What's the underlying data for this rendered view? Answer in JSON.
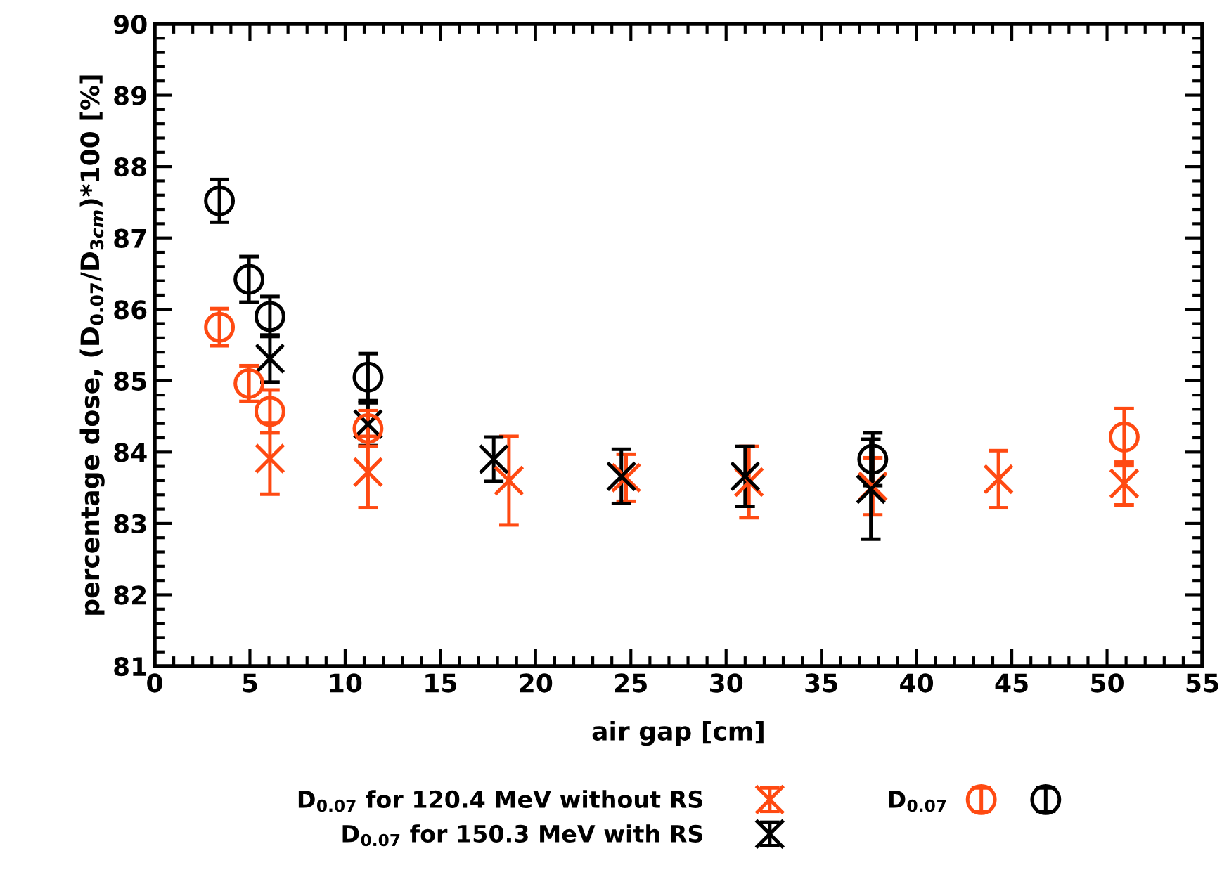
{
  "chart_data": {
    "type": "scatter",
    "xlabel": "air gap [cm]",
    "ylabel": "percentage dose, (D$_{0.07}$/D$_{3cm}$)*100 [%]",
    "xlim": [
      0,
      55
    ],
    "xticks": [
      0,
      5,
      10,
      15,
      20,
      25,
      30,
      35,
      40,
      45,
      50,
      55
    ],
    "ylim": [
      81,
      90
    ],
    "yticks": [
      81,
      82,
      83,
      84,
      85,
      86,
      87,
      88,
      89,
      90
    ],
    "grid": false,
    "legend": "bottom",
    "series": [
      {
        "name": "D$_{0.07}$ for 120.4 MeV without RS",
        "color": "#ff4a12",
        "marker": "cross",
        "x": [
          6.05,
          11.2,
          18.6,
          24.75,
          31.2,
          37.7,
          44.3,
          50.9
        ],
        "values": [
          83.91,
          83.72,
          83.6,
          83.64,
          83.58,
          83.52,
          83.62,
          83.56
        ],
        "errors": [
          0.5,
          0.5,
          0.62,
          0.33,
          0.5,
          0.4,
          0.4,
          0.3
        ]
      },
      {
        "name": "D$_{0.07}$ for 150.3 MeV with RS",
        "color": "#000000",
        "marker": "cross",
        "x": [
          6.05,
          11.2,
          17.8,
          24.5,
          31.0,
          37.6
        ],
        "values": [
          85.31,
          84.39,
          83.9,
          83.66,
          83.66,
          83.48
        ],
        "errors": [
          0.33,
          0.3,
          0.31,
          0.38,
          0.42,
          0.7
        ]
      },
      {
        "name": "D$_{0.07}$",
        "color": "#ff4a12",
        "marker": "circle",
        "x": [
          3.4,
          4.95,
          6.05,
          11.2,
          50.9
        ],
        "values": [
          85.75,
          84.96,
          84.57,
          84.33,
          84.21
        ],
        "errors": [
          0.26,
          0.25,
          0.3,
          0.25,
          0.4
        ]
      },
      {
        "color": "#000000",
        "marker": "circle",
        "x": [
          3.4,
          4.95,
          6.05,
          11.2,
          37.7
        ],
        "values": [
          87.52,
          86.42,
          85.9,
          85.05,
          83.9
        ],
        "errors": [
          0.3,
          0.32,
          0.28,
          0.33,
          0.37
        ]
      }
    ]
  }
}
